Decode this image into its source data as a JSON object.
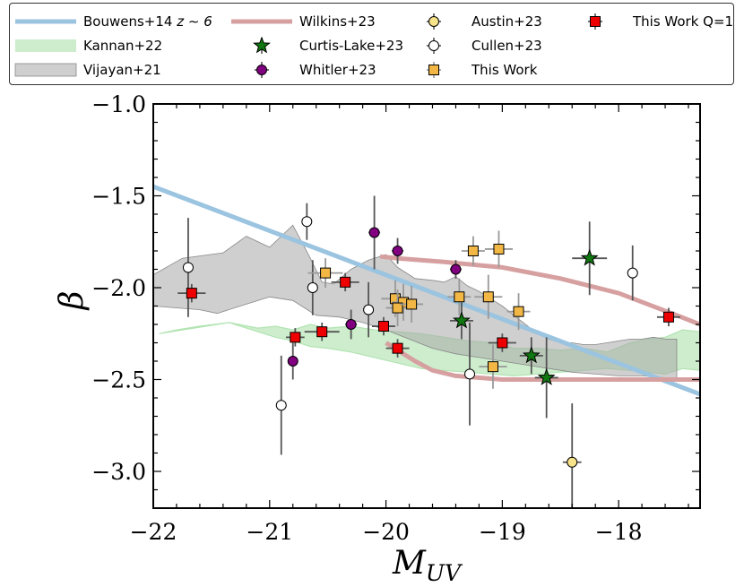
{
  "chart_data": {
    "type": "scatter",
    "xlabel": "M",
    "xlabel_sub": "UV",
    "ylabel": "β",
    "xlim": [
      -22,
      -17.3
    ],
    "ylim": [
      -3.2,
      -1.0
    ],
    "xticks": [
      -22,
      -21,
      -20,
      -19,
      -18
    ],
    "xtick_labels": [
      "−22",
      "−21",
      "−20",
      "−19",
      "−18"
    ],
    "yticks": [
      -3.0,
      -2.5,
      -2.0,
      -1.5,
      -1.0
    ],
    "ytick_labels": [
      "−3.0",
      "−2.5",
      "−2.0",
      "−1.5",
      "−1.0"
    ],
    "colors": {
      "bouwens": "#9bc4e0",
      "kannan": "#b2e4b2",
      "vijayan": "#a8a8a8",
      "wilkins": "#d7a0a0",
      "curtis": "#117711",
      "whitler": "#800080",
      "austin": "#f7e38a",
      "cullen": "#ffffff",
      "thiswork": "#f2b744",
      "thisworkq1": "#ee0000"
    },
    "legend": [
      {
        "key": "bouwens",
        "label": "Bouwens+14 ",
        "label_italic": "z ∼ 6"
      },
      {
        "key": "kannan",
        "label": "Kannan+22",
        "label_italic": ""
      },
      {
        "key": "vijayan",
        "label": "Vijayan+21",
        "label_italic": ""
      },
      {
        "key": "wilkins",
        "label": "Wilkins+23",
        "label_italic": ""
      },
      {
        "key": "curtis",
        "label": "Curtis-Lake+23",
        "label_italic": ""
      },
      {
        "key": "whitler",
        "label": "Whitler+23",
        "label_italic": ""
      },
      {
        "key": "austin",
        "label": "Austin+23",
        "label_italic": ""
      },
      {
        "key": "cullen",
        "label": "Cullen+23",
        "label_italic": ""
      },
      {
        "key": "thiswork",
        "label": "This Work",
        "label_italic": ""
      },
      {
        "key": "thisworkq1",
        "label": "This Work Q=1",
        "label_italic": ""
      }
    ],
    "series": {
      "bouwens": {
        "name": "Bouwens+14 z∼6",
        "style": "line",
        "x": [
          -22,
          -17.3
        ],
        "y": [
          -1.45,
          -2.58
        ]
      },
      "wilkins": {
        "name": "Wilkins+23",
        "style": "line",
        "segment1": {
          "x": [
            -20.05,
            -19.9,
            -19.5,
            -19.0,
            -18.5,
            -18.0,
            -17.5,
            -17.3
          ],
          "y": [
            -1.83,
            -1.84,
            -1.86,
            -1.89,
            -1.95,
            -2.03,
            -2.15,
            -2.2
          ]
        },
        "segment2": {
          "x": [
            -20.0,
            -19.85,
            -19.75,
            -19.6,
            -19.4,
            -19.0,
            -18.5,
            -18.0,
            -17.3
          ],
          "y": [
            -2.3,
            -2.36,
            -2.4,
            -2.45,
            -2.48,
            -2.5,
            -2.5,
            -2.5,
            -2.5
          ]
        }
      },
      "kannan": {
        "name": "Kannan+22",
        "style": "band",
        "upper": {
          "x": [
            -21.95,
            -21.8,
            -21.6,
            -21.35,
            -21.1,
            -20.95,
            -20.8,
            -20.65,
            -20.5,
            -20.3,
            -20.1,
            -19.9,
            -19.7,
            -19.5,
            -19.3,
            -19.1,
            -18.9,
            -18.7,
            -18.5,
            -18.3,
            -18.1,
            -17.9,
            -17.75,
            -17.6,
            -17.45,
            -17.3
          ],
          "y": [
            -2.25,
            -2.23,
            -2.21,
            -2.19,
            -2.22,
            -2.21,
            -2.23,
            -2.2,
            -2.22,
            -2.21,
            -2.23,
            -2.24,
            -2.25,
            -2.27,
            -2.29,
            -2.3,
            -2.33,
            -2.33,
            -2.34,
            -2.33,
            -2.35,
            -2.3,
            -2.28,
            -2.27,
            -2.23,
            -2.24
          ]
        },
        "lower": {
          "x": [
            -21.35,
            -21.1,
            -20.95,
            -20.8,
            -20.65,
            -20.5,
            -20.3,
            -20.1,
            -19.9,
            -19.7,
            -19.5,
            -19.3,
            -19.1,
            -18.9,
            -18.7,
            -18.5,
            -18.3,
            -18.1,
            -17.9,
            -17.75,
            -17.6,
            -17.45,
            -17.3
          ],
          "y": [
            -2.19,
            -2.24,
            -2.27,
            -2.29,
            -2.32,
            -2.33,
            -2.35,
            -2.38,
            -2.41,
            -2.44,
            -2.45,
            -2.46,
            -2.47,
            -2.48,
            -2.47,
            -2.46,
            -2.45,
            -2.44,
            -2.45,
            -2.46,
            -2.47,
            -2.44,
            -2.45
          ]
        }
      },
      "vijayan": {
        "name": "Vijayan+21",
        "style": "band",
        "upper": {
          "x": [
            -22,
            -21.75,
            -21.4,
            -21.2,
            -21.0,
            -20.8,
            -20.65,
            -20.55,
            -20.45,
            -20.3,
            -20.15,
            -20.0,
            -19.9,
            -19.8,
            -19.75,
            -19.6,
            -19.5,
            -19.4,
            -19.3,
            -19.2,
            -19.1,
            -19.0,
            -18.9,
            -18.8,
            -18.7,
            -18.6,
            -18.5,
            -18.4,
            -18.3,
            -18.2,
            -18.1,
            -18.0,
            -17.9,
            -17.8,
            -17.7,
            -17.6,
            -17.5
          ],
          "y": [
            -1.93,
            -1.84,
            -1.81,
            -1.72,
            -1.78,
            -1.66,
            -1.84,
            -1.97,
            -1.98,
            -1.9,
            -1.85,
            -1.82,
            -1.89,
            -1.93,
            -1.95,
            -1.96,
            -1.97,
            -1.94,
            -1.99,
            -2.02,
            -2.06,
            -2.1,
            -2.15,
            -2.2,
            -2.25,
            -2.28,
            -2.3,
            -2.3,
            -2.31,
            -2.31,
            -2.3,
            -2.29,
            -2.28,
            -2.28,
            -2.27,
            -2.28,
            -2.28
          ]
        },
        "lower": {
          "x": [
            -22,
            -21.6,
            -21.45,
            -21.2,
            -21.0,
            -20.8,
            -20.6,
            -20.4,
            -20.2,
            -20.0,
            -19.8,
            -19.6,
            -19.4,
            -19.2,
            -19.0,
            -18.8,
            -18.6,
            -18.4,
            -18.2,
            -18.0,
            -17.8,
            -17.6,
            -17.5
          ],
          "y": [
            -2.1,
            -2.12,
            -2.14,
            -2.09,
            -2.05,
            -2.07,
            -2.15,
            -2.16,
            -2.19,
            -2.23,
            -2.28,
            -2.33,
            -2.36,
            -2.38,
            -2.4,
            -2.42,
            -2.44,
            -2.46,
            -2.47,
            -2.48,
            -2.48,
            -2.49,
            -2.49
          ]
        }
      },
      "curtis": {
        "name": "Curtis-Lake+23",
        "marker": "star",
        "points": [
          {
            "x": -19.35,
            "y": -2.18,
            "xe": 0.1,
            "ye": 0.1
          },
          {
            "x": -18.75,
            "y": -2.37,
            "xe": 0.1,
            "ye": 0.1
          },
          {
            "x": -18.62,
            "y": -2.49,
            "xe": 0.1,
            "ye": 0.22
          },
          {
            "x": -18.25,
            "y": -1.84,
            "xe": 0.15,
            "ye": 0.2
          }
        ]
      },
      "whitler": {
        "name": "Whitler+23",
        "marker": "circle",
        "points": [
          {
            "x": -20.8,
            "y": -2.4,
            "xe": 0.03,
            "ye": 0.1
          },
          {
            "x": -20.3,
            "y": -2.2,
            "xe": 0.05,
            "ye": 0.08
          },
          {
            "x": -20.1,
            "y": -1.7,
            "xe": 0.05,
            "ye": 0.2
          },
          {
            "x": -19.9,
            "y": -1.8,
            "xe": 0.05,
            "ye": 0.07
          },
          {
            "x": -19.4,
            "y": -1.9,
            "xe": 0.05,
            "ye": 0.05
          }
        ]
      },
      "austin": {
        "name": "Austin+23",
        "marker": "circle",
        "points": [
          {
            "x": -18.4,
            "y": -2.95,
            "xe": 0.08,
            "ye": 0.32
          }
        ]
      },
      "cullen": {
        "name": "Cullen+23",
        "marker": "circle",
        "points": [
          {
            "x": -21.7,
            "y": -1.89,
            "xe": 0.0,
            "ye": 0.27
          },
          {
            "x": -20.9,
            "y": -2.64,
            "xe": 0.0,
            "ye": 0.27
          },
          {
            "x": -20.68,
            "y": -1.64,
            "xe": 0.0,
            "ye": 0.1
          },
          {
            "x": -20.63,
            "y": -2.0,
            "xe": 0.0,
            "ye": 0.15
          },
          {
            "x": -20.15,
            "y": -2.12,
            "xe": 0.0,
            "ye": 0.15
          },
          {
            "x": -19.28,
            "y": -2.47,
            "xe": 0.0,
            "ye": 0.28
          },
          {
            "x": -17.88,
            "y": -1.92,
            "xe": 0.0,
            "ye": 0.15
          }
        ]
      },
      "thiswork": {
        "name": "This Work",
        "marker": "square",
        "points": [
          {
            "x": -20.52,
            "y": -1.92,
            "xe": 0.15,
            "ye": 0.08
          },
          {
            "x": -19.92,
            "y": -2.06,
            "xe": 0.12,
            "ye": 0.1
          },
          {
            "x": -19.85,
            "y": -2.08,
            "xe": 0.1,
            "ye": 0.1
          },
          {
            "x": -19.9,
            "y": -2.11,
            "xe": 0.1,
            "ye": 0.1
          },
          {
            "x": -19.78,
            "y": -2.09,
            "xe": 0.1,
            "ye": 0.1
          },
          {
            "x": -19.37,
            "y": -2.05,
            "xe": 0.1,
            "ye": 0.1
          },
          {
            "x": -19.25,
            "y": -1.8,
            "xe": 0.1,
            "ye": 0.08
          },
          {
            "x": -19.03,
            "y": -1.79,
            "xe": 0.12,
            "ye": 0.1
          },
          {
            "x": -19.12,
            "y": -2.05,
            "xe": 0.12,
            "ye": 0.12
          },
          {
            "x": -18.86,
            "y": -2.13,
            "xe": 0.1,
            "ye": 0.1
          },
          {
            "x": -19.08,
            "y": -2.43,
            "xe": 0.12,
            "ye": 0.12
          }
        ]
      },
      "thisworkq1": {
        "name": "This Work Q=1",
        "marker": "square",
        "points": [
          {
            "x": -21.67,
            "y": -2.03,
            "xe": 0.12,
            "ye": 0.05
          },
          {
            "x": -20.78,
            "y": -2.27,
            "xe": 0.08,
            "ye": 0.05
          },
          {
            "x": -20.55,
            "y": -2.24,
            "xe": 0.15,
            "ye": 0.05
          },
          {
            "x": -20.35,
            "y": -1.97,
            "xe": 0.12,
            "ye": 0.05
          },
          {
            "x": -20.02,
            "y": -2.21,
            "xe": 0.1,
            "ye": 0.05
          },
          {
            "x": -19.9,
            "y": -2.33,
            "xe": 0.1,
            "ye": 0.05
          },
          {
            "x": -19.0,
            "y": -2.3,
            "xe": 0.12,
            "ye": 0.05
          },
          {
            "x": -17.57,
            "y": -2.16,
            "xe": 0.1,
            "ye": 0.05
          }
        ]
      }
    }
  }
}
